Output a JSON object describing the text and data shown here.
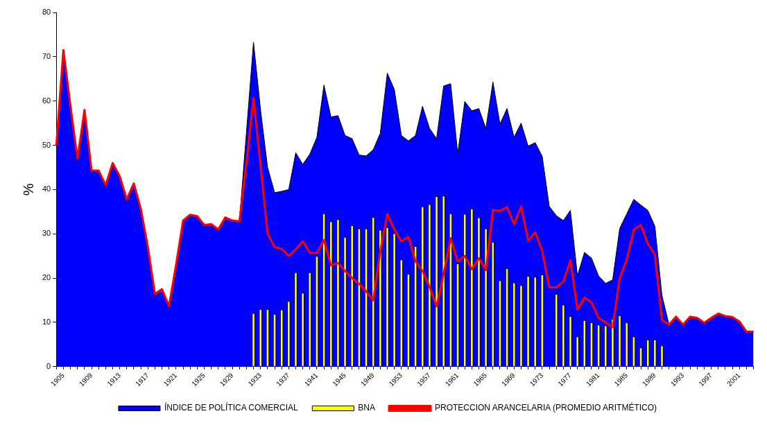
{
  "chart_data": {
    "type": "line",
    "ylabel": "%",
    "categories": [
      null,
      "1905",
      null,
      null,
      null,
      "1909",
      null,
      null,
      null,
      "1913",
      null,
      null,
      null,
      "1917",
      null,
      null,
      null,
      "1921",
      null,
      null,
      null,
      "1925",
      null,
      null,
      null,
      "1929",
      null,
      null,
      null,
      "1933",
      null,
      null,
      null,
      "1937",
      null,
      null,
      null,
      "1941",
      null,
      null,
      null,
      "1945",
      null,
      null,
      null,
      "1949",
      null,
      null,
      null,
      "1953",
      null,
      null,
      null,
      "1957",
      null,
      null,
      null,
      "1961",
      null,
      null,
      null,
      "1965",
      null,
      null,
      null,
      "1969",
      null,
      null,
      null,
      "1973",
      null,
      null,
      null,
      "1977",
      null,
      null,
      null,
      "1981",
      null,
      null,
      null,
      "1985",
      null,
      null,
      null,
      "1989",
      null,
      null,
      null,
      "1993",
      null,
      null,
      null,
      "1997",
      null,
      null,
      null,
      "2001",
      null,
      null
    ],
    "series": [
      {
        "name": "ÍNDICE DE POLÍTICA COMERCIAL",
        "type": "area",
        "color": "#0000ff",
        "values": [
          50,
          71.5,
          59,
          47,
          58,
          44.3,
          44.3,
          41,
          46,
          43,
          37.8,
          41.4,
          35.6,
          27,
          16.4,
          17.5,
          13.7,
          23,
          33,
          34.3,
          34,
          32,
          32.2,
          31,
          33.7,
          33,
          32.8,
          53,
          73.3,
          58,
          45,
          39.3,
          39.6,
          40,
          48.3,
          45.7,
          48,
          51.8,
          63.6,
          56.4,
          56.7,
          52.2,
          51.5,
          47.8,
          47.6,
          49,
          52.7,
          66.3,
          62.6,
          52.2,
          51,
          52.2,
          58.8,
          53.8,
          51.5,
          63.4,
          63.9,
          48.1,
          59.9,
          57.8,
          58.3,
          53.8,
          64.3,
          54.8,
          58.3,
          51.8,
          55,
          49.8,
          50.6,
          47.5,
          36.2,
          34.1,
          33,
          35.3,
          20.5,
          25.8,
          24.5,
          20.5,
          18.8,
          19.6,
          31.2,
          34.5,
          37.8,
          36.5,
          35.3,
          31.7,
          16.1,
          9.5,
          11.3,
          9.5,
          11.3,
          11,
          9.9,
          11,
          12,
          11.4,
          11.2,
          10.2,
          7.9,
          7.9
        ]
      },
      {
        "name": "BNA",
        "type": "bar",
        "color": "#ffff00",
        "values": [
          null,
          null,
          null,
          null,
          null,
          null,
          null,
          null,
          null,
          null,
          null,
          null,
          null,
          null,
          null,
          null,
          null,
          null,
          null,
          null,
          null,
          null,
          null,
          null,
          null,
          null,
          null,
          null,
          12.1,
          13,
          13,
          11.9,
          12.9,
          14.8,
          21.3,
          16.7,
          21.3,
          25,
          34.6,
          32.8,
          33.3,
          29.3,
          31.9,
          31.2,
          31.2,
          33.8,
          30.9,
          31.5,
          30.1,
          24.2,
          21,
          27.2,
          36.2,
          36.7,
          38.5,
          38.6,
          34.6,
          23.3,
          34.5,
          35.7,
          33.7,
          31.2,
          28.2,
          19.5,
          22.2,
          19,
          18.4,
          20.5,
          20.3,
          20.8,
          null,
          16.4,
          14,
          11.4,
          6.8,
          10.5,
          10,
          9.5,
          9.3,
          10.8,
          11.6,
          10,
          6.8,
          4.3,
          6.1,
          6.1,
          4.8,
          null,
          null,
          null,
          null,
          null,
          null,
          null,
          null,
          null,
          null,
          null,
          null,
          null
        ]
      },
      {
        "name": "PROTECCION ARANCELARIA (PROMEDIO ARITMÉTICO)",
        "type": "line",
        "color": "#ff0000",
        "values": [
          50,
          71.5,
          59,
          47,
          58,
          44.3,
          44.3,
          41,
          46,
          43,
          37.8,
          41.4,
          35.6,
          27,
          16.4,
          17.5,
          13.7,
          23,
          33,
          34.3,
          34,
          32,
          32.2,
          31,
          33.7,
          33,
          32.8,
          46,
          60.7,
          45.4,
          30,
          27,
          26.6,
          25,
          26.5,
          28.3,
          25.7,
          25.7,
          28.6,
          22.9,
          23.4,
          21.6,
          20,
          18.7,
          17,
          15,
          26,
          34.5,
          31,
          28.3,
          29.3,
          23.8,
          21.6,
          18,
          13.6,
          21,
          29,
          23.8,
          25,
          22,
          24.5,
          21.8,
          35.4,
          35.2,
          36,
          32.2,
          36.2,
          28.5,
          30.3,
          26.1,
          17.9,
          17.9,
          19.2,
          24,
          12.9,
          15.6,
          14.5,
          11,
          10,
          8.9,
          20,
          24.2,
          30.9,
          32,
          27.7,
          25.3,
          10.5,
          9.5,
          11.3,
          9.5,
          11.3,
          11,
          9.9,
          11,
          12,
          11.4,
          11.2,
          10.2,
          7.9,
          7.9
        ]
      }
    ],
    "ylim": [
      0,
      80
    ],
    "yticks": [
      0,
      10,
      20,
      30,
      40,
      50,
      60,
      70,
      80
    ],
    "grid": false,
    "legend": "bottom",
    "marker": "none"
  }
}
